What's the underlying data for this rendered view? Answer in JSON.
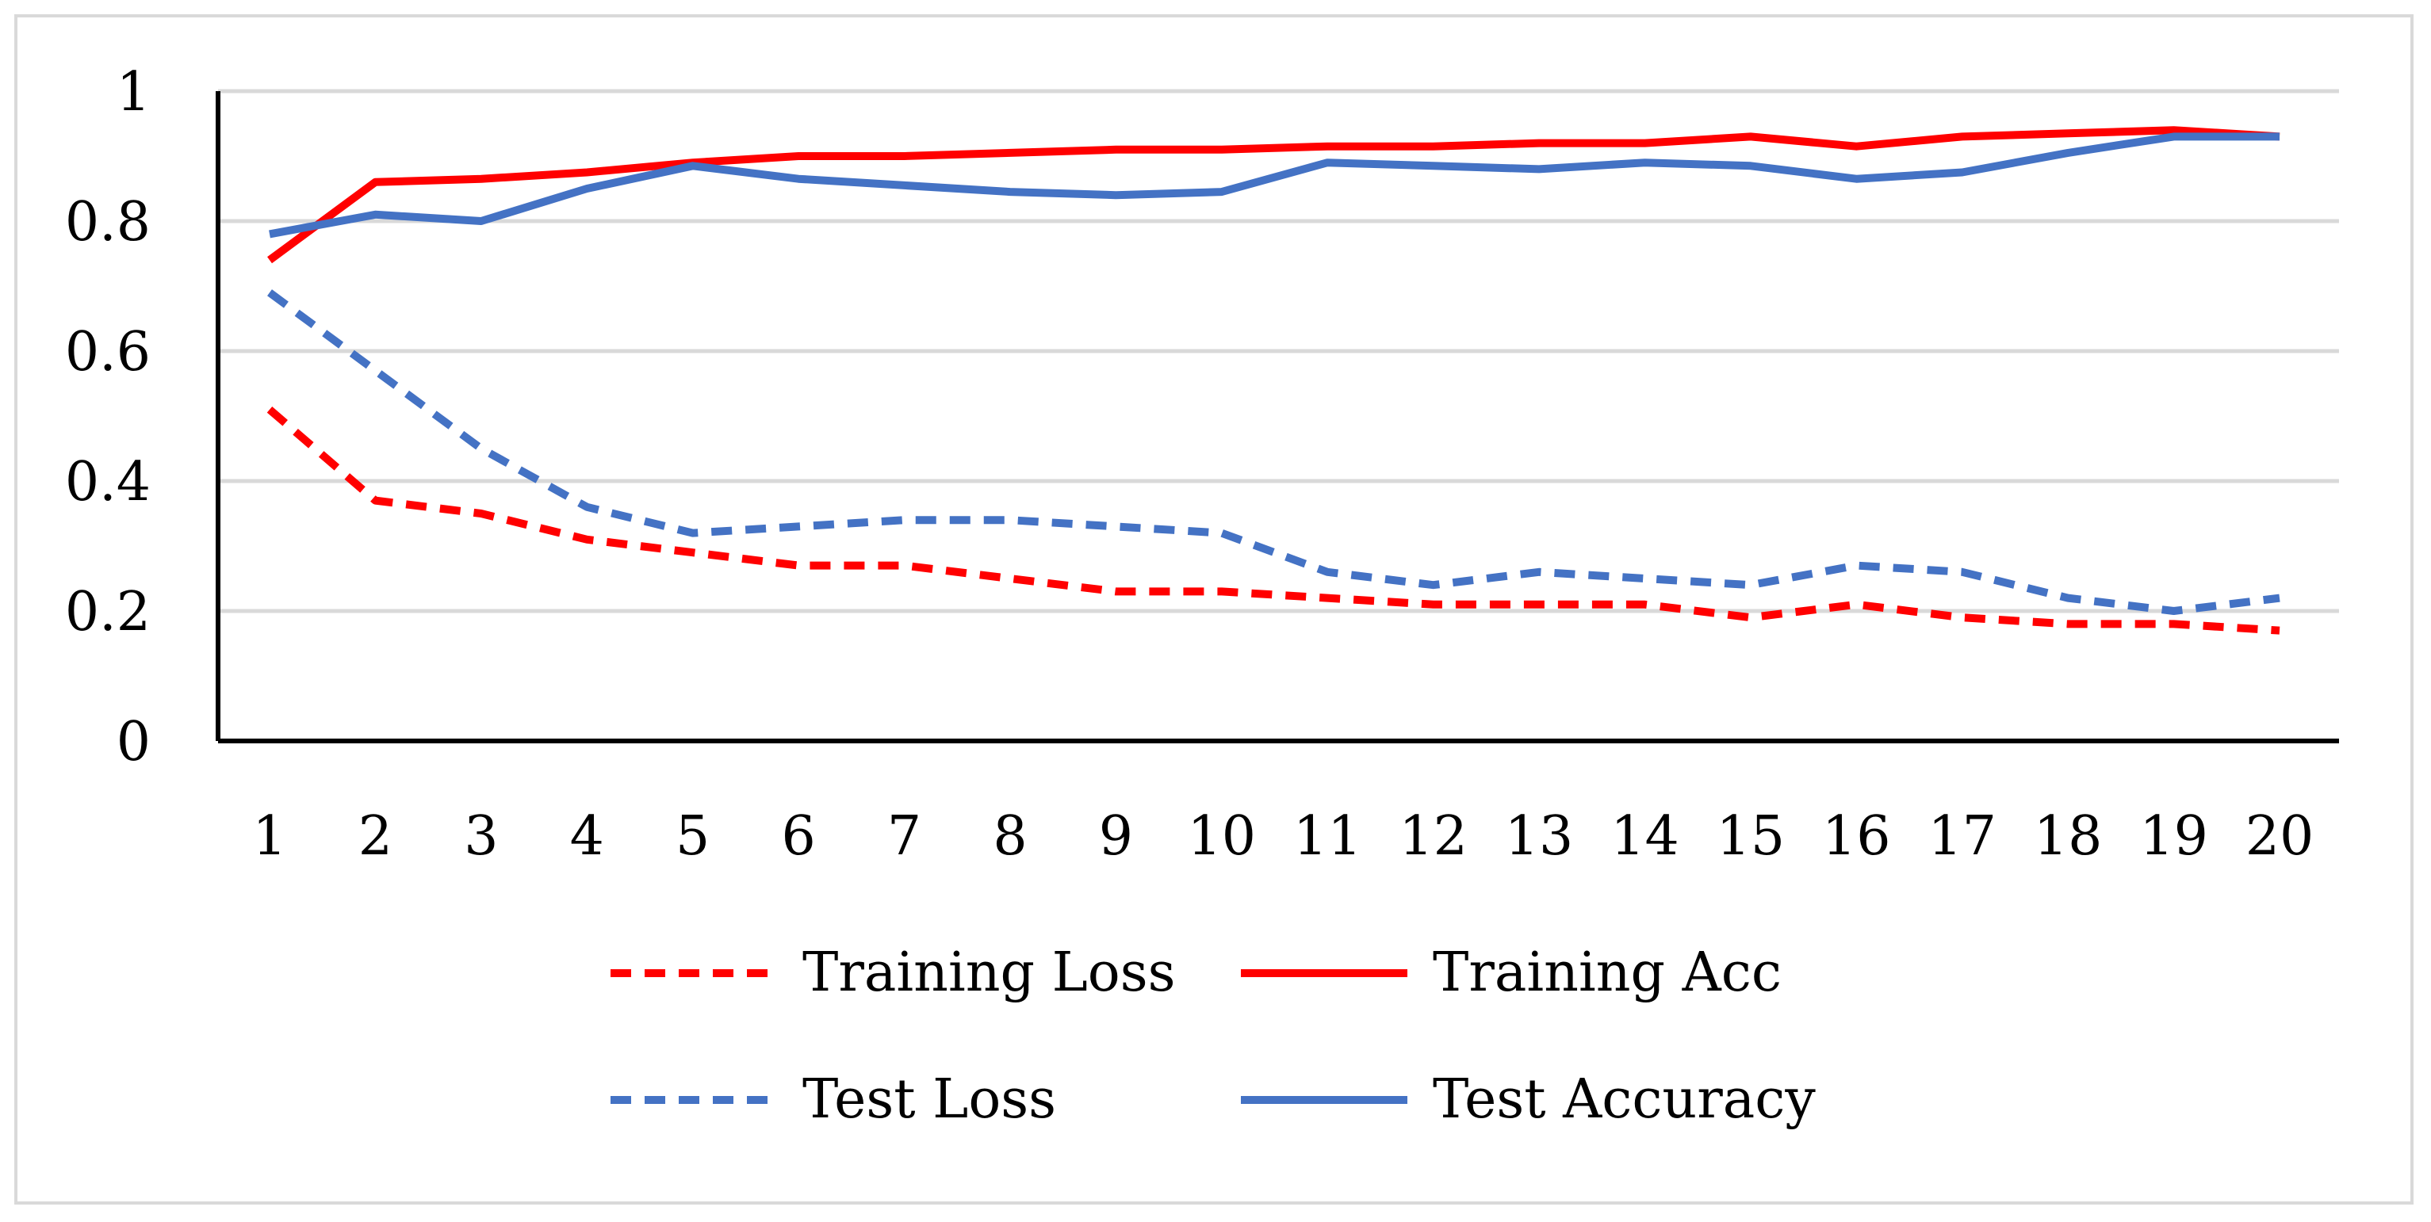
{
  "chart_data": {
    "type": "line",
    "title": "",
    "xlabel": "",
    "ylabel": "",
    "categories": [
      "1",
      "2",
      "3",
      "4",
      "5",
      "6",
      "7",
      "8",
      "9",
      "10",
      "11",
      "12",
      "13",
      "14",
      "15",
      "16",
      "17",
      "18",
      "19",
      "20"
    ],
    "ylim": [
      0,
      1
    ],
    "yticks": [
      "0",
      "0.2",
      "0.4",
      "0.6",
      "0.8",
      "1"
    ],
    "grid": true,
    "legend_position": "bottom",
    "series": [
      {
        "name": "Training Loss",
        "color": "#ff0000",
        "style": "dashed",
        "values": [
          0.51,
          0.37,
          0.35,
          0.31,
          0.29,
          0.27,
          0.27,
          0.25,
          0.23,
          0.23,
          0.22,
          0.21,
          0.21,
          0.21,
          0.19,
          0.21,
          0.19,
          0.18,
          0.18,
          0.17
        ]
      },
      {
        "name": "Training Acc",
        "color": "#ff0000",
        "style": "solid",
        "values": [
          0.74,
          0.86,
          0.865,
          0.875,
          0.89,
          0.9,
          0.9,
          0.905,
          0.91,
          0.91,
          0.915,
          0.915,
          0.92,
          0.92,
          0.93,
          0.915,
          0.93,
          0.935,
          0.94,
          0.93
        ]
      },
      {
        "name": "Test Loss",
        "color": "#4472c4",
        "style": "dashed",
        "values": [
          0.69,
          0.57,
          0.45,
          0.36,
          0.32,
          0.33,
          0.34,
          0.34,
          0.33,
          0.32,
          0.26,
          0.24,
          0.26,
          0.25,
          0.24,
          0.27,
          0.26,
          0.22,
          0.2,
          0.22
        ]
      },
      {
        "name": "Test Accuracy",
        "color": "#4472c4",
        "style": "solid",
        "values": [
          0.78,
          0.81,
          0.8,
          0.85,
          0.885,
          0.865,
          0.855,
          0.845,
          0.84,
          0.845,
          0.89,
          0.885,
          0.88,
          0.89,
          0.885,
          0.865,
          0.875,
          0.905,
          0.93,
          0.93
        ]
      }
    ]
  }
}
